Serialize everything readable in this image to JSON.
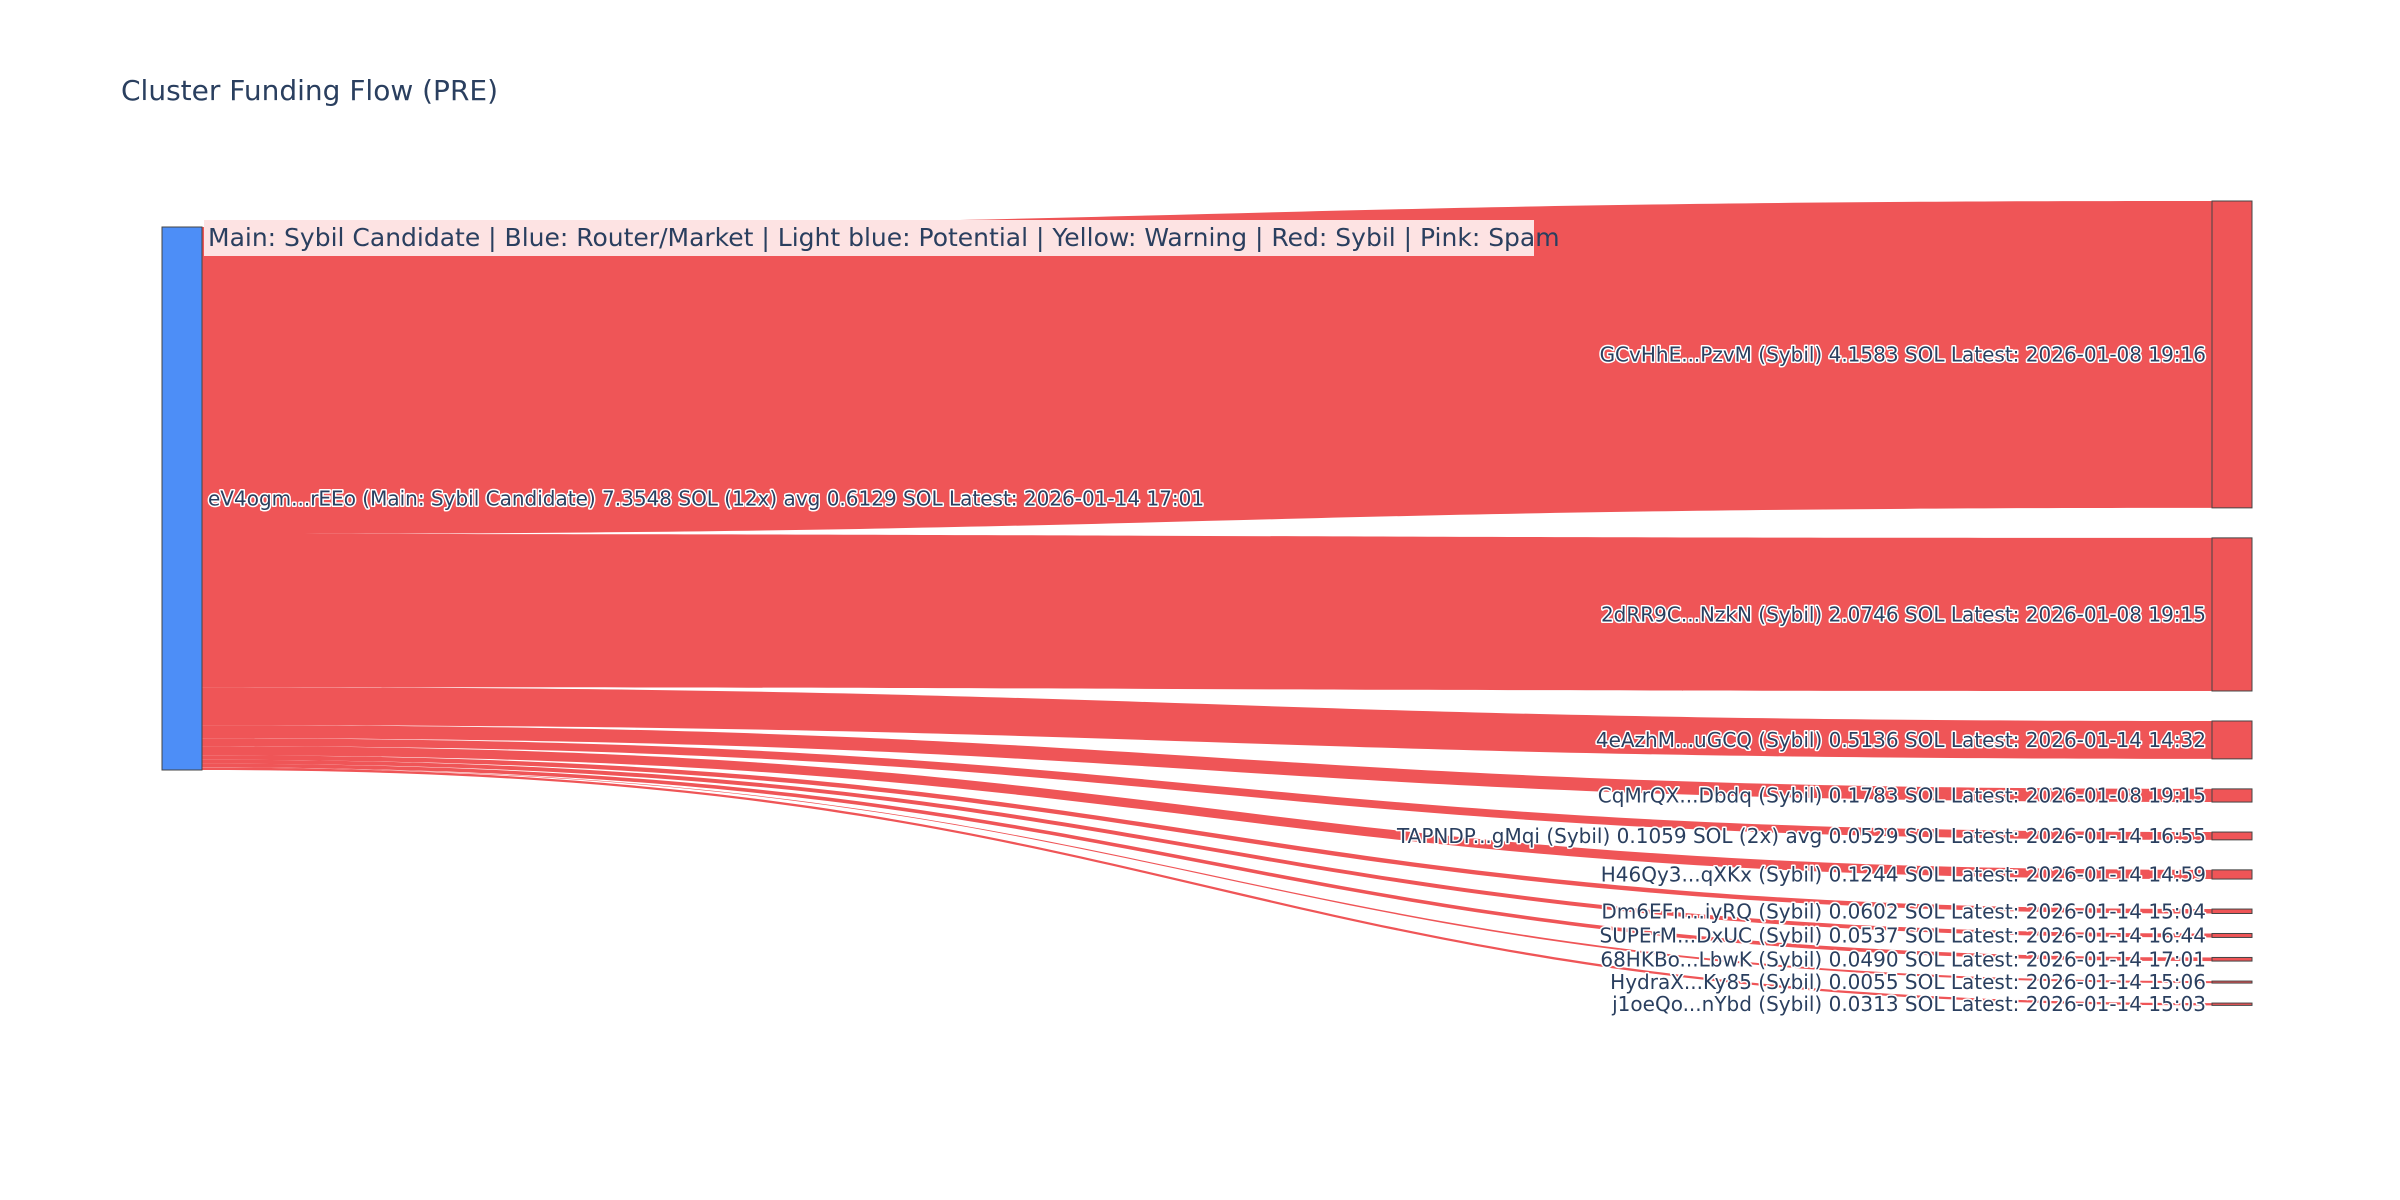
{
  "title": "Cluster Funding Flow (PRE)",
  "legend": "Main: Sybil Candidate  |  Blue: Router/Market | Light blue: Potential | Yellow: Warning | Red: Sybil | Pink: Spam",
  "colors": {
    "source_node": "#4d8ef7",
    "sybil_node": "#ef5557",
    "link": "#ef5557",
    "legend_bg": "#fde3e3",
    "text": "#2a3f5f"
  },
  "chart_data": {
    "type": "sankey",
    "title": "Cluster Funding Flow (PRE)",
    "units": "SOL",
    "source": {
      "id": "eV4ogm...rEEo",
      "label": "eV4ogm...rEEo (Main: Sybil Candidate) 7.3548 SOL (12x) avg 0.6129 SOL Latest: 2026-01-14 17:01",
      "role": "Main: Sybil Candidate",
      "total": 7.3548,
      "tx_count": 12,
      "avg": 0.6129,
      "latest": "2026-01-14 17:01"
    },
    "targets": [
      {
        "id": "GCvHhE...PzvM",
        "label": "GCvHhE...PzvM (Sybil) 4.1583 SOL Latest: 2026-01-08 19:16",
        "value": 4.1583,
        "latest": "2026-01-08 19:16"
      },
      {
        "id": "2dRR9C...NzkN",
        "label": "2dRR9C...NzkN (Sybil) 2.0746 SOL Latest: 2026-01-08 19:15",
        "value": 2.0746,
        "latest": "2026-01-08 19:15"
      },
      {
        "id": "4eAzhM...uGCQ",
        "label": "4eAzhM...uGCQ (Sybil) 0.5136 SOL Latest: 2026-01-14 14:32",
        "value": 0.5136,
        "latest": "2026-01-14 14:32"
      },
      {
        "id": "CqMrQX...Dbdq",
        "label": "CqMrQX...Dbdq (Sybil) 0.1783 SOL Latest: 2026-01-08 19:15",
        "value": 0.1783,
        "latest": "2026-01-08 19:15"
      },
      {
        "id": "TAPNDP...gMqi",
        "label": "TAPNDP...gMqi (Sybil) 0.1059 SOL (2x) avg 0.0529 SOL Latest: 2026-01-14 16:55",
        "value": 0.1059,
        "tx_count": 2,
        "avg": 0.0529,
        "latest": "2026-01-14 16:55"
      },
      {
        "id": "H46Qy3...qXKx",
        "label": "H46Qy3...qXKx (Sybil) 0.1244 SOL Latest: 2026-01-14 14:59",
        "value": 0.1244,
        "latest": "2026-01-14 14:59"
      },
      {
        "id": "Dm6EFn...iyRQ",
        "label": "Dm6EFn...iyRQ (Sybil) 0.0602 SOL Latest: 2026-01-14 15:04",
        "value": 0.0602,
        "latest": "2026-01-14 15:04"
      },
      {
        "id": "SUPErM...DxUC",
        "label": "SUPErM...DxUC (Sybil) 0.0537 SOL Latest: 2026-01-14 16:44",
        "value": 0.0537,
        "latest": "2026-01-14 16:44"
      },
      {
        "id": "68HKBo...LbwK",
        "label": "68HKBo...LbwK (Sybil) 0.0490 SOL Latest: 2026-01-14 17:01",
        "value": 0.049,
        "latest": "2026-01-14 17:01"
      },
      {
        "id": "HydraX...Ky85",
        "label": "HydraX...Ky85 (Sybil) 0.0055 SOL Latest: 2026-01-14 15:06",
        "value": 0.0055,
        "latest": "2026-01-14 15:06"
      },
      {
        "id": "j1oeQo...nYbd",
        "label": "j1oeQo...nYbd (Sybil) 0.0313 SOL Latest: 2026-01-14 15:03",
        "value": 0.0313,
        "latest": "2026-01-14 15:03"
      }
    ]
  }
}
